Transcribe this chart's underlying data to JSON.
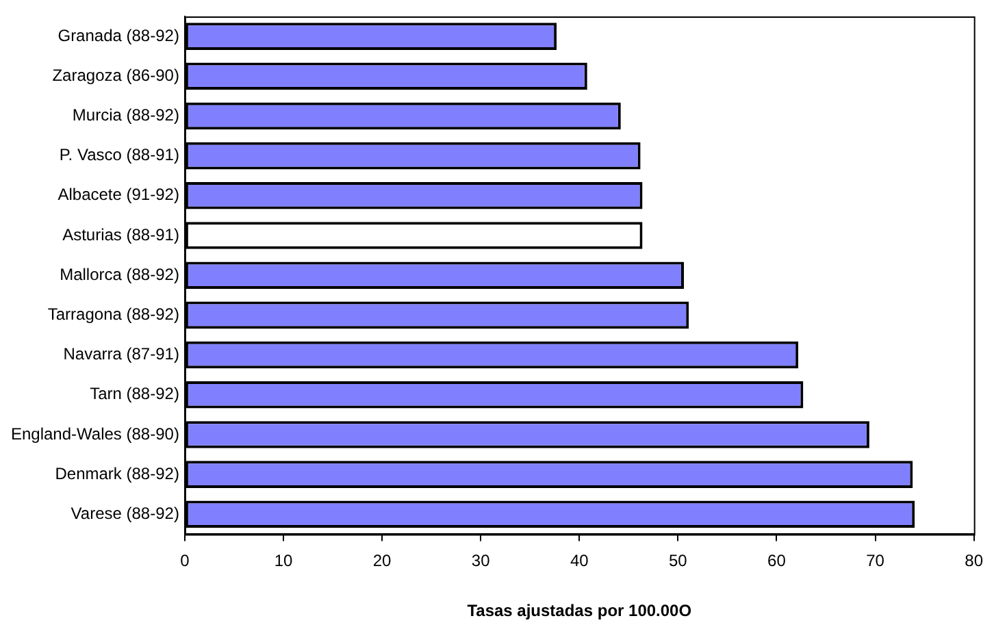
{
  "chart_data": {
    "type": "bar",
    "orientation": "horizontal",
    "xlabel": "Tasas ajustadas por 100.00O",
    "categories": [
      "Granada (88-92)",
      "Zaragoza (86-90)",
      "Murcia (88-92)",
      "P. Vasco (88-91)",
      "Albacete (91-92)",
      "Asturias (88-91)",
      "Mallorca (88-92)",
      "Tarragona (88-92)",
      "Navarra (87-91)",
      "Tarn (88-92)",
      "England-Wales (88-90)",
      "Denmark (88-92)",
      "Varese (88-92)"
    ],
    "values": [
      37.7,
      40.8,
      44.2,
      46.2,
      46.4,
      46.4,
      50.6,
      51.1,
      62.2,
      62.7,
      69.4,
      73.8,
      74.0
    ],
    "colors": [
      "#8080ff",
      "#8080ff",
      "#8080ff",
      "#8080ff",
      "#8080ff",
      "#ffffff",
      "#8080ff",
      "#8080ff",
      "#8080ff",
      "#8080ff",
      "#8080ff",
      "#8080ff",
      "#8080ff"
    ],
    "xlim": [
      0,
      80
    ],
    "xticks": [
      0,
      10,
      20,
      30,
      40,
      50,
      60,
      70,
      80
    ],
    "grid": false,
    "legend": false
  }
}
